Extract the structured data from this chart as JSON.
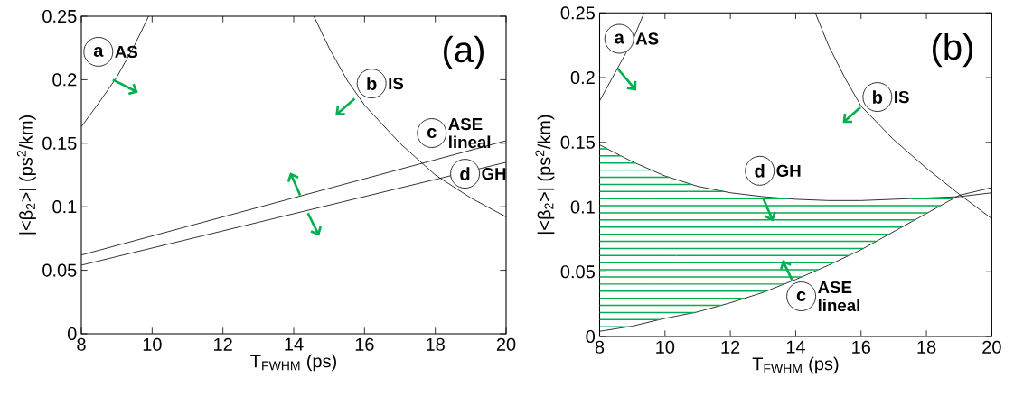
{
  "chart_data": [
    {
      "type": "line",
      "xlabel": "T$_{FWHM}$  (ps)",
      "ylabel": "|<β$_{2}$>|  (ps$^{2}$/km)",
      "xlim": [
        8,
        20
      ],
      "ylim": [
        0,
        0.25
      ],
      "xticks": [
        8,
        10,
        12,
        14,
        16,
        18,
        20
      ],
      "yticks": [
        0,
        0.05,
        0.1,
        0.15,
        0.2,
        0.25
      ],
      "series": [
        {
          "color": "#000000",
          "x": [
            8,
            8.5,
            9,
            9.5,
            9.9
          ],
          "values": [
            0.163,
            0.182,
            0.202,
            0.227,
            0.25
          ]
        },
        {
          "color": "#000000",
          "x": [
            14.57,
            15,
            15.5,
            16,
            17,
            18,
            19,
            20
          ],
          "values": [
            0.25,
            0.225,
            0.2,
            0.18,
            0.15,
            0.125,
            0.107,
            0.092
          ]
        },
        {
          "color": "#000000",
          "x": [
            8,
            20
          ],
          "values": [
            0.062,
            0.152
          ]
        },
        {
          "color": "#000000",
          "x": [
            8,
            20
          ],
          "values": [
            0.054,
            0.135
          ]
        }
      ],
      "annotations": [
        {
          "text": "a",
          "x": 8.48,
          "y": 0.222
        },
        "AS",
        {
          "text": "b",
          "x": 16.2,
          "y": 0.197
        },
        "IS",
        {
          "text": "c",
          "x": 17.9,
          "y": 0.158
        },
        "ASE lineal",
        {
          "text": "d",
          "x": 18.84,
          "y": 0.126
        },
        "GH",
        "(a)"
      ]
    },
    {
      "type": "line",
      "xlabel": "T$_{FWHM}$  (ps)",
      "ylabel": "|<β$_{2}$>|  (ps$^{2}$/km)",
      "xlim": [
        8,
        20
      ],
      "ylim": [
        0,
        0.25
      ],
      "xticks": [
        8,
        10,
        12,
        14,
        16,
        18,
        20
      ],
      "yticks": [
        0,
        0.05,
        0.1,
        0.15,
        0.2,
        0.25
      ],
      "series": [
        {
          "color": "#000000",
          "x": [
            8,
            8.5,
            9,
            9.36
          ],
          "values": [
            0.182,
            0.205,
            0.228,
            0.25
          ]
        },
        {
          "color": "#000000",
          "x": [
            14.6,
            15,
            15.5,
            16,
            17,
            18,
            19,
            20
          ],
          "values": [
            0.25,
            0.225,
            0.2,
            0.178,
            0.152,
            0.13,
            0.11,
            0.091
          ]
        },
        {
          "color": "#000000",
          "x": [
            8,
            9,
            10,
            11,
            12,
            13,
            14,
            15,
            16,
            17,
            18,
            19,
            20
          ],
          "values": [
            0.148,
            0.135,
            0.124,
            0.116,
            0.111,
            0.108,
            0.106,
            0.105,
            0.105,
            0.106,
            0.107,
            0.108,
            0.111
          ]
        },
        {
          "color": "#000000",
          "x": [
            8,
            9,
            10,
            11,
            12,
            13,
            14,
            15,
            16,
            17,
            18,
            19,
            20
          ],
          "values": [
            0.004,
            0.008,
            0.014,
            0.019,
            0.026,
            0.034,
            0.044,
            0.055,
            0.067,
            0.081,
            0.095,
            0.109,
            0.115
          ]
        }
      ],
      "annotations": [
        {
          "text": "a",
          "x": 8.6,
          "y": 0.23
        },
        "AS",
        {
          "text": "b",
          "x": 16.5,
          "y": 0.185
        },
        "IS",
        {
          "text": "d",
          "x": 12.9,
          "y": 0.128
        },
        "GH",
        {
          "text": "c",
          "x": 14.17,
          "y": 0.031
        },
        "ASE lineal",
        "(b)"
      ]
    }
  ]
}
